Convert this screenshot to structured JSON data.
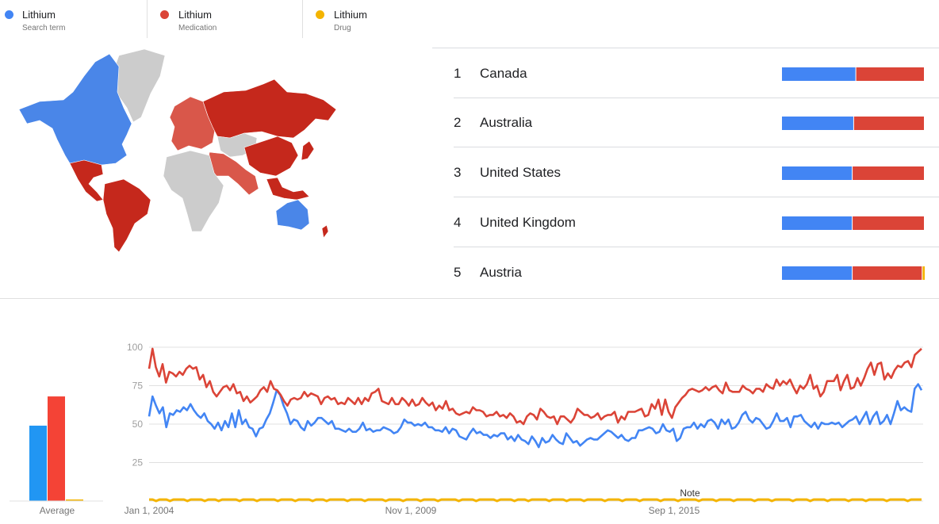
{
  "legend": [
    {
      "name": "Lithium",
      "type": "Search term",
      "color": "#4285f4"
    },
    {
      "name": "Lithium",
      "type": "Medication",
      "color": "#db4437"
    },
    {
      "name": "Lithium",
      "type": "Drug",
      "color": "#f4b400"
    }
  ],
  "map": {
    "regions_blue": [
      "Canada",
      "United States",
      "Alaska",
      "Greenland west",
      "Australia"
    ],
    "regions_red": [
      "Russia",
      "China",
      "Brazil",
      "Mexico",
      "Europe",
      "South America",
      "Indonesia",
      "Middle East"
    ],
    "regions_grey": [
      "Greenland",
      "Africa",
      "Central Asia"
    ]
  },
  "ranking": [
    {
      "rank": "1",
      "country": "Canada",
      "shares": [
        0.52,
        0.48,
        0.0
      ]
    },
    {
      "rank": "2",
      "country": "Australia",
      "shares": [
        0.505,
        0.495,
        0.0
      ]
    },
    {
      "rank": "3",
      "country": "United States",
      "shares": [
        0.495,
        0.505,
        0.0
      ]
    },
    {
      "rank": "4",
      "country": "United Kingdom",
      "shares": [
        0.495,
        0.505,
        0.0
      ]
    },
    {
      "rank": "5",
      "country": "Austria",
      "shares": [
        0.495,
        0.49,
        0.015
      ]
    }
  ],
  "average": {
    "label": "Average",
    "values": [
      49,
      68,
      1
    ]
  },
  "chart_data": {
    "type": "line",
    "xlabels": [
      "Jan 1, 2004",
      "Nov 1, 2009",
      "Sep 1, 2015"
    ],
    "yticks": [
      25,
      50,
      75,
      100
    ],
    "ylim": [
      0,
      100
    ],
    "note_label": "Note",
    "series": [
      {
        "name": "Lithium",
        "color": "#4285f4",
        "values": [
          55,
          68,
          62,
          57,
          61,
          48,
          57,
          56,
          59,
          58,
          61,
          59,
          63,
          59,
          56,
          54,
          57,
          52,
          50,
          47,
          51,
          46,
          52,
          48,
          57,
          48,
          59,
          50,
          53,
          48,
          47,
          42,
          47,
          48,
          53,
          57,
          64,
          72,
          69,
          62,
          57,
          50,
          53,
          52,
          48,
          46,
          52,
          49,
          51,
          54,
          54,
          52,
          50,
          52,
          47,
          47,
          46,
          45,
          47,
          45,
          45,
          47,
          51,
          46,
          47,
          45,
          46,
          46,
          48,
          47,
          46,
          44,
          45,
          48,
          53,
          51,
          51,
          49,
          50,
          49,
          51,
          48,
          48,
          46,
          46,
          45,
          48,
          44,
          47,
          46,
          42,
          41,
          40,
          44,
          47,
          44,
          45,
          43,
          43,
          41,
          43,
          42,
          44,
          44,
          40,
          42,
          39,
          43,
          40,
          39,
          37,
          42,
          39,
          35,
          41,
          38,
          39,
          43,
          40,
          38,
          37,
          44,
          41,
          38,
          39,
          36,
          38,
          40,
          41,
          40,
          40,
          42,
          44,
          46,
          45,
          43,
          41,
          43,
          40,
          39,
          41,
          41,
          46,
          46,
          47,
          48,
          47,
          44,
          45,
          50,
          46,
          45,
          47,
          39,
          41,
          47,
          48,
          48,
          51,
          47,
          50,
          48,
          52,
          53,
          51,
          47,
          53,
          50,
          53,
          47,
          48,
          51,
          56,
          58,
          53,
          51,
          54,
          53,
          50,
          47,
          48,
          52,
          57,
          52,
          52,
          54,
          48,
          55,
          55,
          56,
          52,
          50,
          48,
          51,
          47,
          51,
          50,
          50,
          51,
          50,
          51,
          48,
          50,
          52,
          53,
          55,
          50,
          54,
          58,
          50,
          55,
          58,
          50,
          52,
          56,
          50,
          57,
          65,
          59,
          61,
          59,
          58,
          73,
          76,
          72
        ]
      },
      {
        "name": "Lithium",
        "color": "#db4437",
        "values": [
          86,
          99,
          87,
          81,
          89,
          77,
          84,
          83,
          81,
          84,
          82,
          86,
          88,
          86,
          87,
          79,
          82,
          74,
          78,
          71,
          68,
          71,
          74,
          75,
          72,
          76,
          70,
          71,
          65,
          68,
          64,
          66,
          68,
          72,
          74,
          71,
          78,
          73,
          72,
          69,
          65,
          62,
          66,
          67,
          66,
          67,
          71,
          68,
          70,
          69,
          68,
          63,
          67,
          68,
          66,
          67,
          63,
          64,
          63,
          67,
          65,
          63,
          67,
          63,
          67,
          65,
          70,
          71,
          73,
          65,
          64,
          63,
          67,
          63,
          63,
          67,
          65,
          62,
          66,
          62,
          63,
          67,
          64,
          62,
          64,
          59,
          62,
          60,
          65,
          59,
          60,
          57,
          56,
          57,
          58,
          57,
          61,
          59,
          59,
          58,
          55,
          56,
          56,
          58,
          55,
          56,
          54,
          57,
          55,
          51,
          52,
          50,
          55,
          57,
          56,
          53,
          60,
          58,
          55,
          54,
          55,
          50,
          55,
          55,
          53,
          51,
          54,
          60,
          58,
          56,
          56,
          54,
          55,
          57,
          53,
          55,
          56,
          56,
          58,
          51,
          55,
          53,
          58,
          58,
          58,
          59,
          60,
          55,
          56,
          63,
          60,
          66,
          56,
          66,
          58,
          54,
          61,
          64,
          67,
          69,
          72,
          73,
          72,
          71,
          72,
          74,
          72,
          74,
          75,
          72,
          70,
          77,
          72,
          71,
          71,
          71,
          75,
          73,
          72,
          70,
          73,
          73,
          71,
          76,
          74,
          73,
          79,
          75,
          78,
          76,
          79,
          74,
          70,
          75,
          73,
          76,
          82,
          73,
          75,
          68,
          71,
          78,
          78,
          78,
          82,
          72,
          78,
          82,
          73,
          74,
          80,
          75,
          80,
          86,
          90,
          82,
          89,
          90,
          79,
          83,
          80,
          85,
          88,
          87,
          90,
          91,
          87,
          95,
          97,
          99
        ]
      },
      {
        "name": "Lithium",
        "color": "#f4b400",
        "values": [
          1,
          1,
          0,
          1,
          1,
          1,
          0,
          1,
          1,
          1,
          1,
          0,
          1,
          1,
          1,
          1,
          0,
          1,
          1,
          1,
          0,
          1,
          1,
          1,
          1,
          1,
          0,
          1,
          1,
          1,
          1,
          0,
          1,
          1,
          1,
          1,
          1,
          0,
          1,
          1,
          1,
          1,
          0,
          1,
          1,
          1,
          1,
          0,
          1,
          1,
          1,
          0,
          1,
          1,
          1,
          1,
          1,
          0,
          1,
          1,
          1,
          1,
          0,
          1,
          1,
          1,
          1,
          1,
          0,
          1,
          1,
          1,
          1,
          0,
          1,
          1,
          1,
          1,
          0,
          1,
          1,
          1,
          1,
          0,
          1,
          1,
          1,
          1,
          1,
          0,
          1,
          1,
          1,
          1,
          0,
          1,
          1,
          1,
          1,
          1,
          0,
          1,
          1,
          1,
          1,
          0,
          1,
          1,
          1,
          0,
          1,
          1,
          1,
          1,
          1,
          0,
          1,
          1,
          1,
          1,
          0,
          1,
          1,
          1,
          1,
          0,
          1,
          1,
          1,
          1,
          1,
          0,
          1,
          1,
          1,
          1,
          0,
          1,
          1,
          1,
          1,
          0,
          1,
          1,
          1,
          1,
          1,
          0,
          1,
          1,
          1,
          1,
          0,
          1,
          1,
          1,
          1,
          1,
          0,
          1,
          1,
          1,
          1,
          0,
          1,
          1,
          1,
          1,
          0,
          1,
          1,
          1,
          1,
          1,
          0,
          1,
          1,
          1,
          1,
          0,
          1,
          1,
          1,
          1,
          1,
          0,
          1,
          1,
          1,
          1,
          0,
          1,
          1,
          1,
          1,
          0,
          1,
          1,
          1,
          1,
          1,
          0,
          1,
          1,
          1,
          1,
          0,
          1,
          1,
          1,
          1,
          1,
          0,
          1,
          1,
          1,
          1,
          1,
          0,
          1,
          1,
          1,
          1
        ]
      }
    ]
  }
}
